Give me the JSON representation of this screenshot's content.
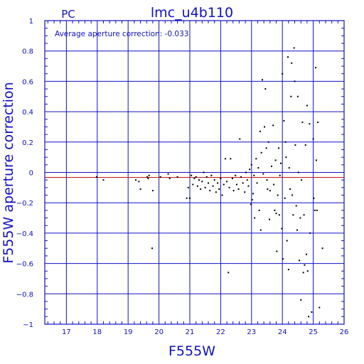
{
  "chart_data": {
    "type": "scatter",
    "corner_label": "PC",
    "title": "lmc_u4b110",
    "annotation": "Average aperture correction: -0.033",
    "xlabel": "F555W",
    "ylabel": "F555W aperture correction",
    "xlim": [
      16.3,
      26
    ],
    "ylim": [
      -1,
      1
    ],
    "x_ticks": [
      "17",
      "18",
      "19",
      "20",
      "21",
      "22",
      "23",
      "24",
      "25",
      "26"
    ],
    "y_ticks": [
      "1",
      "0.8",
      "0.6",
      "0.4",
      "0.2",
      "0",
      "−0.2",
      "−0.4",
      "−0.6",
      "−0.8",
      "−1"
    ],
    "grid": true,
    "average_correction": -0.033,
    "colors": {
      "frame": "#1010c8",
      "grid": "#1010c8",
      "average_line": "#c81414",
      "points": "#000000",
      "text": "#1010c8"
    },
    "points": [
      [
        17.98,
        -0.03
      ],
      [
        18.2,
        -0.05
      ],
      [
        19.25,
        -0.05
      ],
      [
        19.35,
        -0.06
      ],
      [
        19.4,
        -0.11
      ],
      [
        19.62,
        -0.03
      ],
      [
        19.65,
        -0.04
      ],
      [
        19.68,
        -0.02
      ],
      [
        19.8,
        -0.12
      ],
      [
        19.78,
        -0.5
      ],
      [
        20.05,
        -0.03
      ],
      [
        20.3,
        -0.01
      ],
      [
        20.35,
        -0.04
      ],
      [
        20.6,
        -0.03
      ],
      [
        20.9,
        -0.17
      ],
      [
        20.95,
        -0.1
      ],
      [
        21.0,
        -0.17
      ],
      [
        21.05,
        -0.02
      ],
      [
        21.1,
        -0.08
      ],
      [
        21.15,
        -0.04
      ],
      [
        21.2,
        -0.03
      ],
      [
        21.25,
        -0.09
      ],
      [
        21.3,
        -0.05
      ],
      [
        21.35,
        -0.11
      ],
      [
        21.4,
        -0.06
      ],
      [
        21.45,
        0.0
      ],
      [
        21.5,
        -0.1
      ],
      [
        21.55,
        -0.03
      ],
      [
        21.6,
        -0.07
      ],
      [
        21.65,
        -0.12
      ],
      [
        21.7,
        -0.02
      ],
      [
        21.75,
        -0.09
      ],
      [
        21.8,
        -0.05
      ],
      [
        21.85,
        -0.13
      ],
      [
        21.9,
        -0.07
      ],
      [
        21.95,
        -0.11
      ],
      [
        22.0,
        -0.04
      ],
      [
        22.05,
        -0.15
      ],
      [
        22.1,
        -0.08
      ],
      [
        22.15,
        0.09
      ],
      [
        22.2,
        -0.06
      ],
      [
        22.25,
        -0.66
      ],
      [
        22.28,
        -0.1
      ],
      [
        22.32,
        0.09
      ],
      [
        22.38,
        -0.04
      ],
      [
        22.42,
        -0.12
      ],
      [
        22.48,
        -0.02
      ],
      [
        22.52,
        -0.08
      ],
      [
        22.58,
        -0.11
      ],
      [
        22.62,
        0.22
      ],
      [
        22.66,
        -0.03
      ],
      [
        22.72,
        -0.07
      ],
      [
        22.78,
        -0.13
      ],
      [
        22.82,
        0.0
      ],
      [
        22.86,
        -0.05
      ],
      [
        22.9,
        -0.09
      ],
      [
        22.94,
        0.02
      ],
      [
        22.98,
        -0.21
      ],
      [
        23.0,
        0.05
      ],
      [
        23.02,
        -0.18
      ],
      [
        23.05,
        -0.14
      ],
      [
        23.08,
        -0.02
      ],
      [
        23.1,
        -0.3
      ],
      [
        23.15,
        0.09
      ],
      [
        23.18,
        -0.07
      ],
      [
        23.22,
        0.03
      ],
      [
        23.25,
        -0.25
      ],
      [
        23.28,
        0.27
      ],
      [
        23.3,
        -0.38
      ],
      [
        23.32,
        0.13
      ],
      [
        23.35,
        0.61
      ],
      [
        23.38,
        -0.01
      ],
      [
        23.42,
        0.3
      ],
      [
        23.45,
        0.55
      ],
      [
        23.48,
        0.16
      ],
      [
        23.5,
        -0.05
      ],
      [
        23.52,
        -0.11
      ],
      [
        23.55,
        0.2
      ],
      [
        23.58,
        -0.31
      ],
      [
        23.6,
        -0.12
      ],
      [
        23.65,
        0.04
      ],
      [
        23.7,
        0.31
      ],
      [
        23.72,
        -0.08
      ],
      [
        23.75,
        -0.25
      ],
      [
        23.78,
        0.08
      ],
      [
        23.8,
        -0.27
      ],
      [
        23.82,
        -0.52
      ],
      [
        23.85,
        -0.15
      ],
      [
        23.88,
        0.16
      ],
      [
        23.9,
        -0.28
      ],
      [
        23.92,
        -0.02
      ],
      [
        23.95,
        0.06
      ],
      [
        23.98,
        -0.37
      ],
      [
        24.0,
        0.65
      ],
      [
        24.02,
        -0.57
      ],
      [
        24.05,
        0.34
      ],
      [
        24.08,
        -0.17
      ],
      [
        24.1,
        0.2
      ],
      [
        24.12,
        0.1
      ],
      [
        24.15,
        -0.45
      ],
      [
        24.18,
        0.76
      ],
      [
        24.2,
        -0.64
      ],
      [
        24.22,
        0.03
      ],
      [
        24.25,
        -0.11
      ],
      [
        24.28,
        0.5
      ],
      [
        24.3,
        0.72
      ],
      [
        24.32,
        -0.15
      ],
      [
        24.35,
        -0.28
      ],
      [
        24.38,
        0.82
      ],
      [
        24.4,
        0.6
      ],
      [
        24.42,
        0.18
      ],
      [
        24.45,
        -0.22
      ],
      [
        24.48,
        -0.38
      ],
      [
        24.5,
        0.5
      ],
      [
        24.52,
        0.0
      ],
      [
        24.55,
        -0.58
      ],
      [
        24.58,
        -0.3
      ],
      [
        24.6,
        -0.84
      ],
      [
        24.62,
        -0.05
      ],
      [
        24.65,
        0.33
      ],
      [
        24.68,
        -0.66
      ],
      [
        24.7,
        -0.28
      ],
      [
        24.72,
        -0.61
      ],
      [
        24.75,
        0.18
      ],
      [
        24.78,
        -0.54
      ],
      [
        24.8,
        0.44
      ],
      [
        24.82,
        -0.65
      ],
      [
        24.85,
        -0.95
      ],
      [
        24.88,
        0.32
      ],
      [
        24.9,
        -0.4
      ],
      [
        24.95,
        -0.92
      ],
      [
        25.0,
        0.22
      ],
      [
        25.02,
        -0.17
      ],
      [
        25.05,
        -0.25
      ],
      [
        25.08,
        0.69
      ],
      [
        25.1,
        0.08
      ],
      [
        25.12,
        -0.25
      ],
      [
        25.15,
        0.33
      ],
      [
        25.2,
        -0.89
      ],
      [
        25.3,
        -0.5
      ]
    ]
  }
}
